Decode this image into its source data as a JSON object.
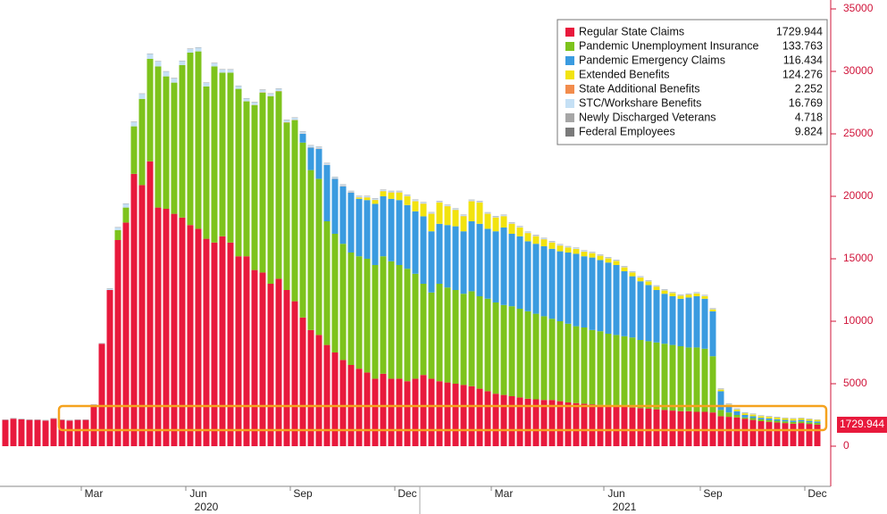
{
  "chart_data": {
    "type": "stacked_bar",
    "categories": [
      null,
      null,
      null,
      null,
      null,
      null,
      null,
      null,
      null,
      null,
      null,
      "Mar",
      null,
      null,
      null,
      null,
      null,
      null,
      null,
      null,
      null,
      null,
      null,
      null,
      "Jun",
      null,
      null,
      null,
      null,
      null,
      null,
      null,
      null,
      null,
      null,
      null,
      null,
      "Sep",
      null,
      null,
      null,
      null,
      null,
      null,
      null,
      null,
      null,
      null,
      null,
      null,
      "Dec",
      null,
      null,
      null,
      null,
      null,
      null,
      null,
      null,
      null,
      null,
      null,
      "Mar",
      null,
      null,
      null,
      null,
      null,
      null,
      null,
      null,
      null,
      null,
      null,
      null,
      null,
      "Jun",
      null,
      null,
      null,
      null,
      null,
      null,
      null,
      null,
      null,
      null,
      null,
      "Sep",
      null,
      null,
      null,
      null,
      null,
      null,
      null,
      null,
      null,
      null,
      null,
      null,
      "Dec"
    ],
    "x_groups": [
      null,
      null,
      null,
      null,
      null,
      null,
      null,
      null,
      null,
      null,
      null,
      null,
      null,
      null,
      null,
      null,
      null,
      null,
      null,
      null,
      null,
      null,
      null,
      null,
      null,
      "2020",
      null,
      null,
      null,
      null,
      null,
      null,
      null,
      null,
      null,
      null,
      null,
      null,
      null,
      null,
      null,
      null,
      null,
      null,
      null,
      null,
      null,
      null,
      null,
      null,
      null,
      null,
      null,
      null,
      null,
      null,
      null,
      null,
      null,
      null,
      null,
      null,
      null,
      null,
      null,
      null,
      null,
      null,
      null,
      null,
      null,
      null,
      null,
      null,
      null,
      null,
      null,
      "2021",
      null,
      null,
      null,
      null,
      null,
      null,
      null,
      null,
      null,
      null,
      null,
      null,
      null,
      null,
      null,
      null,
      null,
      null,
      null,
      null,
      null,
      null,
      null,
      null
    ],
    "ylim": [
      -3000,
      35000
    ],
    "yticks": [
      0,
      5000,
      10000,
      15000,
      20000,
      25000,
      30000,
      35000
    ],
    "series": [
      {
        "name": "Regular State Claims",
        "color": "#e8193c",
        "values": [
          2100,
          2200,
          2150,
          2100,
          2100,
          2050,
          2200,
          2100,
          2050,
          2100,
          2100,
          3300,
          8200,
          12500,
          16500,
          17900,
          21800,
          20900,
          22800,
          19100,
          19000,
          18600,
          18300,
          17700,
          17400,
          16600,
          16300,
          16800,
          16300,
          15200,
          15200,
          14100,
          13900,
          13000,
          13400,
          12500,
          11600,
          10300,
          9300,
          8900,
          8100,
          7500,
          6900,
          6500,
          6200,
          5900,
          5400,
          5800,
          5400,
          5400,
          5200,
          5400,
          5700,
          5400,
          5200,
          5100,
          5000,
          4900,
          4800,
          4600,
          4400,
          4200,
          4100,
          4000,
          3900,
          3800,
          3750,
          3700,
          3700,
          3600,
          3500,
          3450,
          3400,
          3350,
          3300,
          3250,
          3200,
          3150,
          3100,
          3050,
          3000,
          2950,
          2900,
          2850,
          2800,
          2800,
          2750,
          2750,
          2700,
          2400,
          2350,
          2300,
          2200,
          2100,
          2000,
          1950,
          1900,
          1850,
          1800,
          1850,
          1780,
          1729.944
        ]
      },
      {
        "name": "Pandemic Unemployment Insurance",
        "color": "#7dc31c",
        "values": [
          0,
          0,
          0,
          0,
          0,
          0,
          0,
          0,
          0,
          0,
          0,
          0,
          0,
          0,
          800,
          1200,
          3800,
          6900,
          8200,
          11300,
          10600,
          10500,
          12200,
          13800,
          14200,
          12200,
          14100,
          13100,
          13600,
          13400,
          12400,
          13200,
          14400,
          15000,
          15000,
          13400,
          14500,
          14000,
          12800,
          12500,
          9900,
          9500,
          9300,
          9000,
          9000,
          9100,
          9100,
          9400,
          9400,
          9100,
          9000,
          8400,
          7300,
          6900,
          7800,
          7600,
          7500,
          7300,
          7600,
          7400,
          7400,
          7300,
          7200,
          7200,
          7100,
          7000,
          6850,
          6700,
          6500,
          6400,
          6300,
          6150,
          6100,
          5950,
          5900,
          5750,
          5700,
          5650,
          5600,
          5450,
          5400,
          5350,
          5300,
          5250,
          5200,
          5100,
          5150,
          5050,
          4500,
          500,
          350,
          200,
          100,
          150,
          140,
          140,
          135,
          135,
          135,
          135,
          134,
          133.763
        ]
      },
      {
        "name": "Pandemic Emergency Claims",
        "color": "#3a9be0",
        "values": [
          0,
          0,
          0,
          0,
          0,
          0,
          0,
          0,
          0,
          0,
          0,
          0,
          0,
          0,
          0,
          0,
          0,
          0,
          0,
          0,
          0,
          0,
          0,
          0,
          0,
          0,
          0,
          0,
          0,
          0,
          0,
          0,
          0,
          0,
          0,
          0,
          0,
          700,
          1800,
          2400,
          4500,
          4400,
          4600,
          4800,
          4600,
          4700,
          4900,
          4800,
          5000,
          5200,
          5100,
          5000,
          5400,
          4900,
          4800,
          5000,
          5100,
          5000,
          5600,
          5800,
          5600,
          5700,
          6200,
          5800,
          5800,
          5600,
          5600,
          5600,
          5600,
          5600,
          5700,
          5800,
          5700,
          5800,
          5700,
          5700,
          5600,
          5200,
          4900,
          4700,
          4500,
          4200,
          4000,
          3900,
          3800,
          4000,
          4100,
          4000,
          3600,
          1500,
          500,
          300,
          200,
          150,
          130,
          125,
          120,
          120,
          118,
          117,
          116,
          116.434
        ]
      },
      {
        "name": "Extended Benefits",
        "color": "#f2e30f",
        "values": [
          0,
          0,
          0,
          0,
          0,
          0,
          0,
          0,
          0,
          0,
          0,
          0,
          0,
          0,
          0,
          0,
          0,
          0,
          0,
          0,
          0,
          0,
          0,
          0,
          0,
          0,
          0,
          0,
          0,
          0,
          0,
          0,
          0,
          0,
          0,
          0,
          0,
          0,
          0,
          0,
          0,
          0,
          0,
          0,
          100,
          200,
          300,
          400,
          500,
          600,
          700,
          800,
          1000,
          1400,
          1700,
          1500,
          1300,
          1200,
          1600,
          1700,
          1200,
          1100,
          900,
          800,
          700,
          650,
          600,
          550,
          500,
          450,
          400,
          380,
          360,
          350,
          340,
          330,
          320,
          310,
          300,
          290,
          280,
          270,
          260,
          250,
          240,
          230,
          220,
          210,
          150,
          130,
          130,
          130,
          130,
          130,
          128,
          127,
          126,
          126,
          125,
          125,
          125,
          124.276
        ]
      },
      {
        "name": "State Additional Benefits",
        "color": "#f28c4c",
        "values": [
          0,
          0,
          0,
          0,
          0,
          0,
          0,
          0,
          0,
          0,
          0,
          0,
          0,
          0,
          0,
          0,
          0,
          0,
          0,
          0,
          0,
          0,
          0,
          0,
          0,
          0,
          0,
          0,
          0,
          0,
          10,
          15,
          20,
          20,
          25,
          25,
          20,
          20,
          20,
          20,
          20,
          20,
          20,
          20,
          20,
          20,
          20,
          20,
          20,
          20,
          20,
          20,
          20,
          20,
          20,
          20,
          20,
          20,
          20,
          20,
          15,
          15,
          15,
          15,
          15,
          15,
          15,
          15,
          15,
          15,
          10,
          10,
          10,
          10,
          10,
          10,
          10,
          10,
          10,
          10,
          8,
          8,
          8,
          8,
          8,
          8,
          8,
          8,
          8,
          8,
          5,
          5,
          5,
          5,
          5,
          5,
          5,
          5,
          5,
          5,
          3,
          2.252
        ]
      },
      {
        "name": "STC/Workshare Benefits",
        "color": "#c5e0f5",
        "values": [
          10,
          10,
          10,
          10,
          10,
          10,
          10,
          10,
          10,
          10,
          10,
          10,
          10,
          100,
          200,
          300,
          350,
          400,
          400,
          400,
          380,
          350,
          330,
          300,
          300,
          280,
          260,
          250,
          240,
          230,
          220,
          210,
          200,
          190,
          180,
          170,
          160,
          150,
          140,
          130,
          120,
          110,
          100,
          90,
          90,
          90,
          90,
          90,
          90,
          90,
          90,
          90,
          90,
          80,
          80,
          80,
          80,
          80,
          80,
          80,
          80,
          80,
          80,
          70,
          70,
          70,
          70,
          70,
          70,
          70,
          70,
          70,
          70,
          60,
          60,
          60,
          60,
          60,
          60,
          60,
          60,
          60,
          60,
          50,
          50,
          50,
          50,
          50,
          50,
          50,
          50,
          50,
          50,
          40,
          35,
          30,
          25,
          22,
          20,
          18,
          17,
          16.769
        ]
      },
      {
        "name": "Newly Discharged Veterans",
        "color": "#a6a6a6",
        "values": [
          10,
          10,
          10,
          10,
          10,
          10,
          10,
          10,
          10,
          10,
          10,
          10,
          10,
          10,
          10,
          10,
          10,
          10,
          10,
          10,
          10,
          10,
          10,
          10,
          10,
          10,
          10,
          10,
          10,
          10,
          10,
          10,
          10,
          10,
          10,
          10,
          10,
          10,
          10,
          10,
          10,
          10,
          10,
          10,
          10,
          10,
          10,
          10,
          10,
          10,
          10,
          10,
          10,
          10,
          10,
          10,
          10,
          10,
          10,
          10,
          10,
          10,
          10,
          10,
          10,
          10,
          10,
          10,
          10,
          10,
          10,
          10,
          10,
          10,
          10,
          10,
          10,
          10,
          10,
          10,
          10,
          10,
          10,
          10,
          10,
          10,
          10,
          10,
          10,
          10,
          10,
          10,
          10,
          10,
          10,
          10,
          10,
          10,
          10,
          10,
          10,
          4.718
        ]
      },
      {
        "name": "Federal Employees",
        "color": "#7a7a7a",
        "values": [
          20,
          20,
          20,
          20,
          20,
          20,
          20,
          20,
          20,
          20,
          20,
          20,
          20,
          20,
          20,
          20,
          20,
          20,
          20,
          20,
          20,
          20,
          20,
          20,
          20,
          20,
          20,
          20,
          20,
          20,
          20,
          20,
          20,
          20,
          20,
          20,
          20,
          20,
          20,
          20,
          20,
          20,
          20,
          20,
          20,
          20,
          20,
          20,
          20,
          20,
          20,
          20,
          20,
          20,
          20,
          20,
          20,
          20,
          20,
          20,
          20,
          20,
          20,
          20,
          20,
          20,
          20,
          20,
          20,
          20,
          20,
          20,
          20,
          20,
          20,
          20,
          20,
          20,
          20,
          20,
          20,
          20,
          20,
          20,
          20,
          20,
          20,
          20,
          20,
          20,
          20,
          20,
          20,
          20,
          20,
          20,
          20,
          20,
          20,
          20,
          20,
          9.824
        ]
      }
    ]
  }
}
